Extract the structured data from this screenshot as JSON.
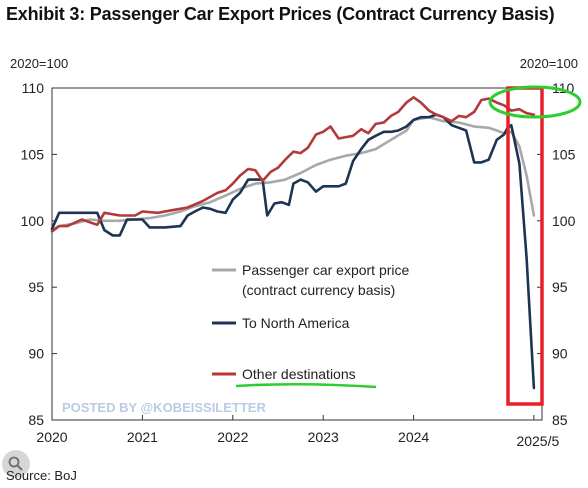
{
  "title": "Exhibit 3: Passenger Car Export Prices (Contract Currency Basis)",
  "source": "Source: BoJ",
  "watermark": "POSTED BY @KOBEISSILETTER",
  "colors": {
    "export_price": "#a8a8a8",
    "north_america": "#1c3552",
    "other_destinations": "#b23a3a",
    "annotation_red": "#e8202a",
    "annotation_green": "#2ecc2e",
    "watermark": "#b9cbe6"
  },
  "chart_data": {
    "type": "line",
    "left_axis_label": "2020=100",
    "right_axis_label": "2020=100",
    "ylim": [
      85,
      110
    ],
    "yticks": [
      85,
      90,
      95,
      100,
      105,
      110
    ],
    "xlim": [
      2020,
      2025.42
    ],
    "xticks": [
      {
        "value": 2020,
        "label": "2020"
      },
      {
        "value": 2021,
        "label": "2021"
      },
      {
        "value": 2022,
        "label": "2022"
      },
      {
        "value": 2023,
        "label": "2023"
      },
      {
        "value": 2024,
        "label": "2024"
      },
      {
        "value": 2025.33,
        "label": "2025/5"
      }
    ],
    "grid": false,
    "legend_position": "center-left",
    "series": [
      {
        "name": "Passenger car export price\n(contract currency basis)",
        "color_key": "export_price",
        "points": [
          [
            2020.0,
            99.3
          ],
          [
            2020.08,
            99.6
          ],
          [
            2020.25,
            99.8
          ],
          [
            2020.42,
            100.1
          ],
          [
            2020.58,
            100.0
          ],
          [
            2020.75,
            100.0
          ],
          [
            2020.92,
            100.1
          ],
          [
            2021.08,
            100.2
          ],
          [
            2021.25,
            100.4
          ],
          [
            2021.42,
            100.7
          ],
          [
            2021.58,
            101.1
          ],
          [
            2021.75,
            101.4
          ],
          [
            2021.92,
            101.9
          ],
          [
            2022.08,
            102.4
          ],
          [
            2022.25,
            102.8
          ],
          [
            2022.42,
            102.9
          ],
          [
            2022.58,
            103.1
          ],
          [
            2022.75,
            103.6
          ],
          [
            2022.92,
            104.2
          ],
          [
            2023.08,
            104.6
          ],
          [
            2023.25,
            104.9
          ],
          [
            2023.42,
            105.1
          ],
          [
            2023.58,
            105.4
          ],
          [
            2023.75,
            106.1
          ],
          [
            2023.92,
            106.8
          ],
          [
            2024.0,
            107.6
          ],
          [
            2024.17,
            107.8
          ],
          [
            2024.33,
            107.5
          ],
          [
            2024.5,
            107.4
          ],
          [
            2024.67,
            107.1
          ],
          [
            2024.83,
            107.0
          ],
          [
            2024.92,
            106.8
          ],
          [
            2025.0,
            106.6
          ],
          [
            2025.08,
            106.7
          ],
          [
            2025.17,
            105.6
          ],
          [
            2025.25,
            103.4
          ],
          [
            2025.33,
            100.4
          ]
        ]
      },
      {
        "name": "To North America",
        "color_key": "north_america",
        "points": [
          [
            2020.0,
            99.4
          ],
          [
            2020.08,
            100.6
          ],
          [
            2020.25,
            100.6
          ],
          [
            2020.42,
            100.6
          ],
          [
            2020.5,
            100.6
          ],
          [
            2020.58,
            99.3
          ],
          [
            2020.67,
            98.9
          ],
          [
            2020.75,
            98.9
          ],
          [
            2020.83,
            100.1
          ],
          [
            2020.92,
            100.1
          ],
          [
            2021.0,
            100.1
          ],
          [
            2021.08,
            99.5
          ],
          [
            2021.25,
            99.5
          ],
          [
            2021.42,
            99.6
          ],
          [
            2021.5,
            100.4
          ],
          [
            2021.58,
            100.7
          ],
          [
            2021.67,
            101.0
          ],
          [
            2021.75,
            100.9
          ],
          [
            2021.83,
            100.7
          ],
          [
            2021.92,
            100.6
          ],
          [
            2022.0,
            101.6
          ],
          [
            2022.08,
            102.1
          ],
          [
            2022.17,
            103.1
          ],
          [
            2022.25,
            103.1
          ],
          [
            2022.33,
            103.1
          ],
          [
            2022.38,
            100.4
          ],
          [
            2022.46,
            101.3
          ],
          [
            2022.54,
            101.4
          ],
          [
            2022.62,
            101.2
          ],
          [
            2022.67,
            102.8
          ],
          [
            2022.75,
            103.1
          ],
          [
            2022.83,
            102.9
          ],
          [
            2022.92,
            102.2
          ],
          [
            2023.0,
            102.6
          ],
          [
            2023.08,
            102.6
          ],
          [
            2023.17,
            102.6
          ],
          [
            2023.25,
            102.8
          ],
          [
            2023.33,
            104.5
          ],
          [
            2023.42,
            105.4
          ],
          [
            2023.5,
            106.1
          ],
          [
            2023.58,
            106.4
          ],
          [
            2023.67,
            106.7
          ],
          [
            2023.75,
            106.7
          ],
          [
            2023.83,
            106.8
          ],
          [
            2023.92,
            107.1
          ],
          [
            2024.0,
            107.6
          ],
          [
            2024.08,
            107.8
          ],
          [
            2024.17,
            107.8
          ],
          [
            2024.25,
            108.0
          ],
          [
            2024.33,
            107.8
          ],
          [
            2024.42,
            107.2
          ],
          [
            2024.5,
            107.0
          ],
          [
            2024.58,
            106.8
          ],
          [
            2024.67,
            104.4
          ],
          [
            2024.75,
            104.4
          ],
          [
            2024.83,
            104.6
          ],
          [
            2024.92,
            106.1
          ],
          [
            2025.0,
            106.5
          ],
          [
            2025.04,
            107.0
          ],
          [
            2025.08,
            107.2
          ],
          [
            2025.17,
            104.3
          ],
          [
            2025.25,
            97.2
          ],
          [
            2025.33,
            87.4
          ]
        ]
      },
      {
        "name": "Other destinations",
        "color_key": "other_destinations",
        "points": [
          [
            2020.0,
            99.2
          ],
          [
            2020.08,
            99.6
          ],
          [
            2020.17,
            99.6
          ],
          [
            2020.33,
            100.1
          ],
          [
            2020.5,
            99.7
          ],
          [
            2020.58,
            100.6
          ],
          [
            2020.75,
            100.4
          ],
          [
            2020.92,
            100.4
          ],
          [
            2021.0,
            100.7
          ],
          [
            2021.17,
            100.6
          ],
          [
            2021.33,
            100.8
          ],
          [
            2021.5,
            101.0
          ],
          [
            2021.67,
            101.5
          ],
          [
            2021.83,
            102.1
          ],
          [
            2021.92,
            102.3
          ],
          [
            2022.0,
            102.8
          ],
          [
            2022.08,
            103.4
          ],
          [
            2022.17,
            103.9
          ],
          [
            2022.25,
            103.8
          ],
          [
            2022.33,
            103.0
          ],
          [
            2022.42,
            103.7
          ],
          [
            2022.5,
            104.0
          ],
          [
            2022.58,
            104.6
          ],
          [
            2022.67,
            105.2
          ],
          [
            2022.75,
            105.1
          ],
          [
            2022.83,
            105.5
          ],
          [
            2022.92,
            106.5
          ],
          [
            2023.0,
            106.7
          ],
          [
            2023.08,
            107.1
          ],
          [
            2023.17,
            106.2
          ],
          [
            2023.25,
            106.3
          ],
          [
            2023.33,
            106.4
          ],
          [
            2023.42,
            106.9
          ],
          [
            2023.5,
            106.6
          ],
          [
            2023.58,
            107.3
          ],
          [
            2023.67,
            107.4
          ],
          [
            2023.75,
            107.9
          ],
          [
            2023.83,
            108.2
          ],
          [
            2023.92,
            108.9
          ],
          [
            2024.0,
            109.3
          ],
          [
            2024.08,
            108.9
          ],
          [
            2024.17,
            108.3
          ],
          [
            2024.25,
            108.0
          ],
          [
            2024.33,
            107.8
          ],
          [
            2024.42,
            107.5
          ],
          [
            2024.5,
            107.9
          ],
          [
            2024.58,
            107.8
          ],
          [
            2024.67,
            108.2
          ],
          [
            2024.75,
            109.1
          ],
          [
            2024.83,
            109.2
          ],
          [
            2024.92,
            108.9
          ],
          [
            2025.0,
            108.7
          ],
          [
            2025.08,
            108.3
          ],
          [
            2025.17,
            108.4
          ],
          [
            2025.25,
            108.1
          ],
          [
            2025.33,
            108.0
          ]
        ]
      }
    ]
  }
}
